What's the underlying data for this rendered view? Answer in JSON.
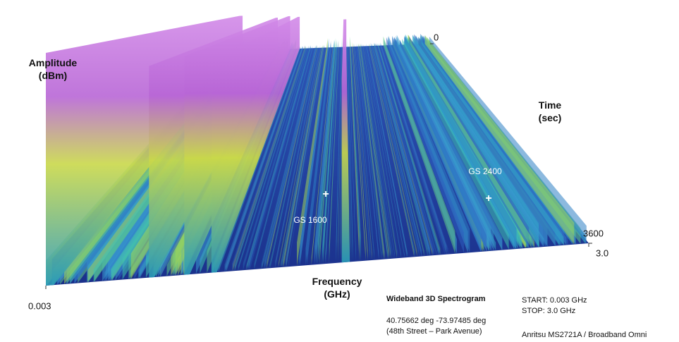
{
  "chart_data": {
    "type": "spectrogram3d",
    "z_label": "Amplitude\n(dBm)",
    "x_label": "Frequency\n(GHz)",
    "y_label": "Time\n(sec)",
    "xlim": [
      0.003,
      3.0
    ],
    "xticks": [
      0.003,
      {
        "value": 3.0,
        "label": "3.0"
      }
    ],
    "ylim": [
      0,
      3600
    ],
    "yticks": [
      0,
      3600
    ],
    "annotations": [
      "GS 1600",
      "GS 2400"
    ],
    "info": {
      "title": "Wideband 3D Spectrogram",
      "location": "40.75662 deg -73.97485 deg",
      "street": "(48th Street – Park Avenue)",
      "start": "START:  0.003 GHz",
      "stop": "STOP:  3.0 GHz",
      "instrument": "Anritsu MS2721A / Broadband Omni"
    }
  }
}
